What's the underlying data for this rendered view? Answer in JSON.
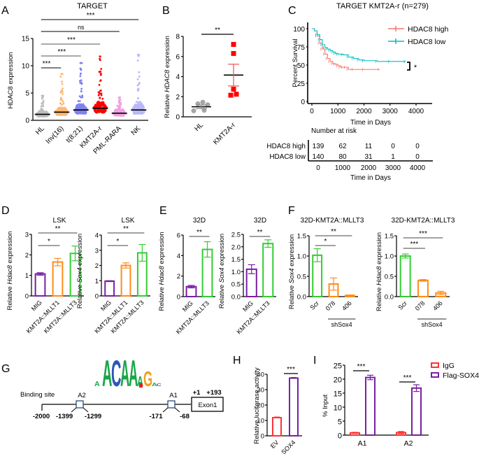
{
  "panels": {
    "A": "A",
    "B": "B",
    "C": "C",
    "D": "D",
    "E": "E",
    "F": "F",
    "G": "G",
    "H": "H",
    "I": "I"
  },
  "chart_data": [
    {
      "id": "A",
      "type": "scatter",
      "title": "TARGET",
      "ylabel": "HDAC8 expression",
      "xlabel": "",
      "ylim": [
        0,
        15
      ],
      "yticks": [
        0,
        5,
        10,
        15
      ],
      "categories": [
        "HL",
        "Inv(16)",
        "t(8;21)",
        "KMT2A-r",
        "PML-RARA",
        "NK"
      ],
      "colors": [
        "#bdbdbd",
        "#ffb870",
        "#8080f0",
        "#ff0000",
        "#f0a0e0",
        "#b8b8f8"
      ],
      "medians": [
        1.1,
        1.5,
        1.9,
        2.2,
        1.3,
        1.9
      ],
      "max_values": [
        4.5,
        8.5,
        10.5,
        11.7,
        4.2,
        12.0
      ],
      "comparisons": [
        {
          "from": "HL",
          "to": "Inv(16)",
          "label": "***"
        },
        {
          "from": "HL",
          "to": "t(8;21)",
          "label": "***"
        },
        {
          "from": "HL",
          "to": "KMT2A-r",
          "label": "***"
        },
        {
          "from": "HL",
          "to": "PML-RARA",
          "label": "ns"
        },
        {
          "from": "HL",
          "to": "NK",
          "label": "***"
        }
      ]
    },
    {
      "id": "B",
      "type": "scatter",
      "title": "",
      "ylabel": "Relative HDAC8 expression",
      "ylim": [
        0,
        8
      ],
      "yticks": [
        0,
        2,
        4,
        6,
        8
      ],
      "categories": [
        "HL",
        "KMT2A-r"
      ],
      "colors": [
        "#a6a6a6",
        "#ff0000"
      ],
      "series": [
        {
          "name": "HL",
          "values": [
            1.3,
            1.45,
            1.2,
            0.6,
            0.65
          ],
          "mean": 1.0,
          "sem": 0.18
        },
        {
          "name": "KMT2A-r",
          "values": [
            7.2,
            6.3,
            2.75,
            2.15,
            2.25
          ],
          "mean": 4.15,
          "sem": 1.08
        }
      ],
      "comparisons": [
        {
          "from": "HL",
          "to": "KMT2A-r",
          "label": "**"
        }
      ]
    },
    {
      "id": "C",
      "type": "line",
      "title": "TARGET KMT2A-r (n=279)",
      "ylabel": "Percent Survival",
      "xlabel": "Time in Days",
      "xlim": [
        0,
        4000
      ],
      "ylim": [
        0,
        100
      ],
      "xticks": [
        0,
        1000,
        2000,
        3000,
        4000
      ],
      "yticks": [
        0,
        25,
        50,
        75,
        100
      ],
      "legend_position": "top-right",
      "significance": "*",
      "series": [
        {
          "name": "HDAC8 high",
          "color": "#f8766d",
          "x": [
            0,
            100,
            200,
            300,
            400,
            500,
            600,
            700,
            800,
            900,
            1000,
            1100,
            1200,
            1300,
            1400,
            1600,
            2000,
            2600
          ],
          "y": [
            100,
            97,
            90,
            80,
            72,
            65,
            59,
            55,
            52,
            51,
            49,
            47,
            47,
            47,
            44,
            44,
            44,
            44
          ]
        },
        {
          "name": "HDAC8 low",
          "color": "#00bfc4",
          "x": [
            0,
            100,
            200,
            300,
            400,
            500,
            600,
            700,
            800,
            900,
            1000,
            1200,
            1400,
            1600,
            1800,
            2000,
            2500,
            3000,
            3600
          ],
          "y": [
            100,
            97,
            92,
            85,
            78,
            74,
            72,
            70,
            68,
            66,
            65,
            64,
            61,
            59,
            57,
            56,
            55,
            55,
            55
          ]
        }
      ],
      "risk_table": {
        "title": "Number at risk",
        "xlabel": "Time in Days",
        "times": [
          "0",
          "1000",
          "2000",
          "3000",
          "4000"
        ],
        "rows": [
          {
            "label": "HDAC8 high",
            "values": [
              "139",
              "62",
              "11",
              "0",
              "0"
            ]
          },
          {
            "label": "HDAC8 low",
            "values": [
              "140",
              "80",
              "31",
              "1",
              "0"
            ]
          }
        ]
      }
    },
    {
      "id": "D1",
      "type": "bar",
      "title": "LSK",
      "ylabel": "Relative Hdac8 expression",
      "ylim": [
        0,
        3
      ],
      "yticks": [
        0,
        1,
        2,
        3
      ],
      "categories": [
        "MIG",
        "KMT2A::MLLT1",
        "KMT2A::MLLT3"
      ],
      "colors": [
        "#7a1fa2",
        "#ff8c1a",
        "#33cc33"
      ],
      "values": [
        1.07,
        1.65,
        2.07
      ],
      "errors": [
        0.06,
        0.18,
        0.36
      ],
      "comparisons": [
        {
          "from": 0,
          "to": 1,
          "label": "*"
        },
        {
          "from": 0,
          "to": 2,
          "label": "**"
        }
      ]
    },
    {
      "id": "D2",
      "type": "bar",
      "title": "LSK",
      "ylabel": "Relative Sox4 expression",
      "ylim": [
        0,
        4
      ],
      "yticks": [
        0,
        1,
        2,
        3,
        4
      ],
      "categories": [
        "MIG",
        "KMT2A::MLLT1",
        "KMT2A::MLLT3"
      ],
      "colors": [
        "#7a1fa2",
        "#ff8c1a",
        "#33cc33"
      ],
      "values": [
        0.97,
        2.0,
        2.83
      ],
      "errors": [
        0.03,
        0.17,
        0.55
      ],
      "comparisons": [
        {
          "from": 0,
          "to": 1,
          "label": "*"
        },
        {
          "from": 0,
          "to": 2,
          "label": "**"
        }
      ]
    },
    {
      "id": "E1",
      "type": "bar",
      "title": "32D",
      "ylabel": "Relative Hdac8 expression",
      "ylim": [
        0,
        6
      ],
      "yticks": [
        0,
        2,
        4,
        6
      ],
      "categories": [
        "MIG",
        "KMT2A::MLLT3"
      ],
      "colors": [
        "#7a1fa2",
        "#33cc33"
      ],
      "values": [
        0.97,
        4.6
      ],
      "errors": [
        0.12,
        0.75
      ],
      "comparisons": [
        {
          "from": 0,
          "to": 1,
          "label": "**"
        }
      ]
    },
    {
      "id": "E2",
      "type": "bar",
      "title": "32D",
      "ylabel": "Relative Sox4 expression",
      "ylim": [
        0,
        2.5
      ],
      "yticks": [
        "0.0",
        "0.5",
        "1.0",
        "1.5",
        "2.0",
        "2.5"
      ],
      "categories": [
        "MIG",
        "KMT2A::MLLT3"
      ],
      "colors": [
        "#7a1fa2",
        "#33cc33"
      ],
      "values": [
        1.1,
        2.13
      ],
      "errors": [
        0.18,
        0.15
      ],
      "comparisons": [
        {
          "from": 0,
          "to": 1,
          "label": "**"
        }
      ]
    },
    {
      "id": "F1",
      "type": "bar",
      "title": "32D-KMT2A::MLLT3",
      "ylabel": "Relative Sox4 expression",
      "ylim": [
        0,
        1.5
      ],
      "yticks": [
        "0.0",
        "0.5",
        "1.0",
        "1.5"
      ],
      "categories": [
        "Scr",
        "078",
        "406"
      ],
      "group_label": "shSox4",
      "colors": [
        "#33cc33",
        "#ff8c1a",
        "#ff8c1a"
      ],
      "values": [
        1.02,
        0.31,
        0.03
      ],
      "errors": [
        0.16,
        0.15,
        0.01
      ],
      "comparisons": [
        {
          "from": 0,
          "to": 1,
          "label": "*"
        },
        {
          "from": 0,
          "to": 2,
          "label": "**"
        }
      ]
    },
    {
      "id": "F2",
      "type": "bar",
      "title": "32D-KMT2A::MLLT3",
      "ylabel": "Relative Hdac8 expression",
      "ylim": [
        0,
        1.5
      ],
      "yticks": [
        "0.0",
        "0.5",
        "1.0",
        "1.5"
      ],
      "categories": [
        "Scr",
        "078",
        "406"
      ],
      "group_label": "shSox4",
      "colors": [
        "#33cc33",
        "#ff8c1a",
        "#ff8c1a"
      ],
      "values": [
        1.0,
        0.4,
        0.09
      ],
      "errors": [
        0.05,
        0.02,
        0.04
      ],
      "comparisons": [
        {
          "from": 0,
          "to": 1,
          "label": "***"
        },
        {
          "from": 0,
          "to": 2,
          "label": "***"
        }
      ]
    },
    {
      "id": "H",
      "type": "bar",
      "title": "",
      "ylabel": "Relative luciferase activity",
      "ylim": [
        0,
        40
      ],
      "yticks": [
        0,
        10,
        20,
        30,
        40
      ],
      "categories": [
        "EV",
        "SOX4"
      ],
      "colors": [
        "#ff3333",
        "#7a1fa2"
      ],
      "values": [
        11.8,
        37.5
      ],
      "errors": [
        0.4,
        0.4
      ],
      "comparisons": [
        {
          "from": 0,
          "to": 1,
          "label": "***"
        }
      ]
    },
    {
      "id": "I",
      "type": "bar",
      "title": "",
      "ylabel": "% Input",
      "ylim": [
        0,
        25
      ],
      "yticks": [
        0,
        5,
        10,
        15,
        20,
        25
      ],
      "categories": [
        "A1",
        "A2"
      ],
      "legend_position": "top-right",
      "series": [
        {
          "name": "IgG",
          "color": "#ff3333",
          "values": [
            0.8,
            0.9
          ],
          "errors": [
            0.2,
            0.4
          ]
        },
        {
          "name": "Flag-SOX4",
          "color": "#7a1fa2",
          "values": [
            20.6,
            16.8
          ],
          "errors": [
            0.8,
            1.2
          ]
        }
      ],
      "comparisons": [
        {
          "category": "A1",
          "label": "***"
        },
        {
          "category": "A2",
          "label": "***"
        }
      ]
    }
  ],
  "diagram_G": {
    "motif": [
      "A",
      "C",
      "A",
      "A",
      "A",
      "G"
    ],
    "motif_colors": {
      "A": "#1aa64a",
      "C": "#2b58b8",
      "G": "#f0a020",
      "T": "#e02020"
    },
    "binding_site_label": "Binding site",
    "sites": [
      {
        "name": "A2",
        "start": "-1399",
        "end": "-1299"
      },
      {
        "name": "A1",
        "start": "-171",
        "end": "-68"
      }
    ],
    "start_label": "-2000",
    "exon": {
      "label": "Exon1",
      "start": "+1",
      "end": "+193"
    }
  }
}
